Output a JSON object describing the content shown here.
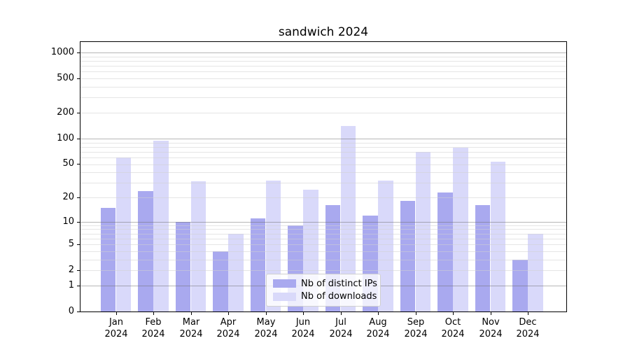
{
  "chart_data": {
    "type": "bar",
    "title": "sandwich 2024",
    "categories": [
      "Jan",
      "Feb",
      "Mar",
      "Apr",
      "May",
      "Jun",
      "Jul",
      "Aug",
      "Sep",
      "Oct",
      "Nov",
      "Dec"
    ],
    "category_year_label": "2024",
    "series": [
      {
        "name": "Nb of distinct IPs",
        "color": "#a9a9ef",
        "values": [
          15,
          24,
          10,
          4,
          11,
          9,
          16,
          12,
          18,
          23,
          16,
          3
        ]
      },
      {
        "name": "Nb of downloads",
        "color": "#d9d9fa",
        "values": [
          60,
          95,
          31,
          7,
          32,
          25,
          140,
          32,
          70,
          78,
          53,
          7
        ]
      }
    ],
    "xlabel": "",
    "ylabel": "",
    "yscale": "log1p",
    "ytick_values": [
      0,
      1,
      2,
      5,
      10,
      20,
      50,
      100,
      200,
      500,
      1000
    ],
    "ytick_labels": [
      "0",
      "1",
      "2",
      "5",
      "10",
      "20",
      "50",
      "100",
      "200",
      "500",
      "1000"
    ],
    "ylim": [
      0,
      1276
    ],
    "grid": "on",
    "legend_position": "lower center"
  }
}
